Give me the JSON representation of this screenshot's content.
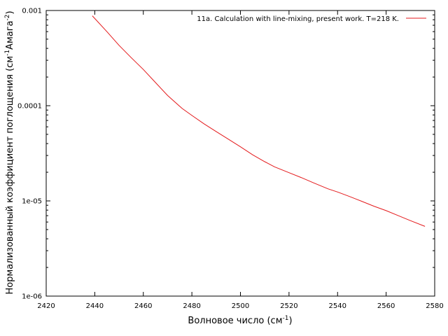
{
  "chart_data": {
    "type": "line",
    "xlabel_main": "Волновое число (см",
    "xlabel_sup": "-1",
    "xlabel_end": ")",
    "ylabel_main": "Нормализованный коэффициент поглощения (см",
    "ylabel_sup1": "-1",
    "ylabel_mid": "Амага",
    "ylabel_sup2": "-2",
    "ylabel_end": ")",
    "xlim": [
      2420,
      2580
    ],
    "ylim": [
      1e-06,
      0.001
    ],
    "yscale": "log",
    "grid": false,
    "legend_position": "top-right",
    "x_ticks": [
      {
        "value": 2420,
        "label": "2420"
      },
      {
        "value": 2440,
        "label": "2440"
      },
      {
        "value": 2460,
        "label": "2460"
      },
      {
        "value": 2480,
        "label": "2480"
      },
      {
        "value": 2500,
        "label": "2500"
      },
      {
        "value": 2520,
        "label": "2520"
      },
      {
        "value": 2540,
        "label": "2540"
      },
      {
        "value": 2560,
        "label": "2560"
      },
      {
        "value": 2580,
        "label": "2580"
      }
    ],
    "y_ticks": [
      {
        "value": 1e-06,
        "label": "1e-06"
      },
      {
        "value": 1e-05,
        "label": "1e-05"
      },
      {
        "value": 0.0001,
        "label": "0.0001"
      },
      {
        "value": 0.001,
        "label": "0.001"
      }
    ],
    "series": [
      {
        "name": "11a. Calculation with line-mixing, present work. T=218 K.",
        "color": "#e41a1c",
        "x": [
          2439,
          2445,
          2450,
          2455,
          2460,
          2465,
          2470,
          2476,
          2480,
          2485,
          2490,
          2495,
          2500,
          2505,
          2510,
          2514,
          2520,
          2525,
          2530,
          2536,
          2540,
          2545,
          2550,
          2555,
          2560,
          2565,
          2570,
          2576
        ],
        "y": [
          0.00088,
          0.0006,
          0.00043,
          0.00032,
          0.00024,
          0.000175,
          0.000128,
          9.35e-05,
          7.9e-05,
          6.45e-05,
          5.35e-05,
          4.45e-05,
          3.7e-05,
          3.05e-05,
          2.58e-05,
          2.28e-05,
          1.98e-05,
          1.76e-05,
          1.55e-05,
          1.34e-05,
          1.24e-05,
          1.11e-05,
          9.9e-06,
          8.8e-06,
          7.9e-06,
          7e-06,
          6.2e-06,
          5.4e-06
        ]
      }
    ]
  }
}
